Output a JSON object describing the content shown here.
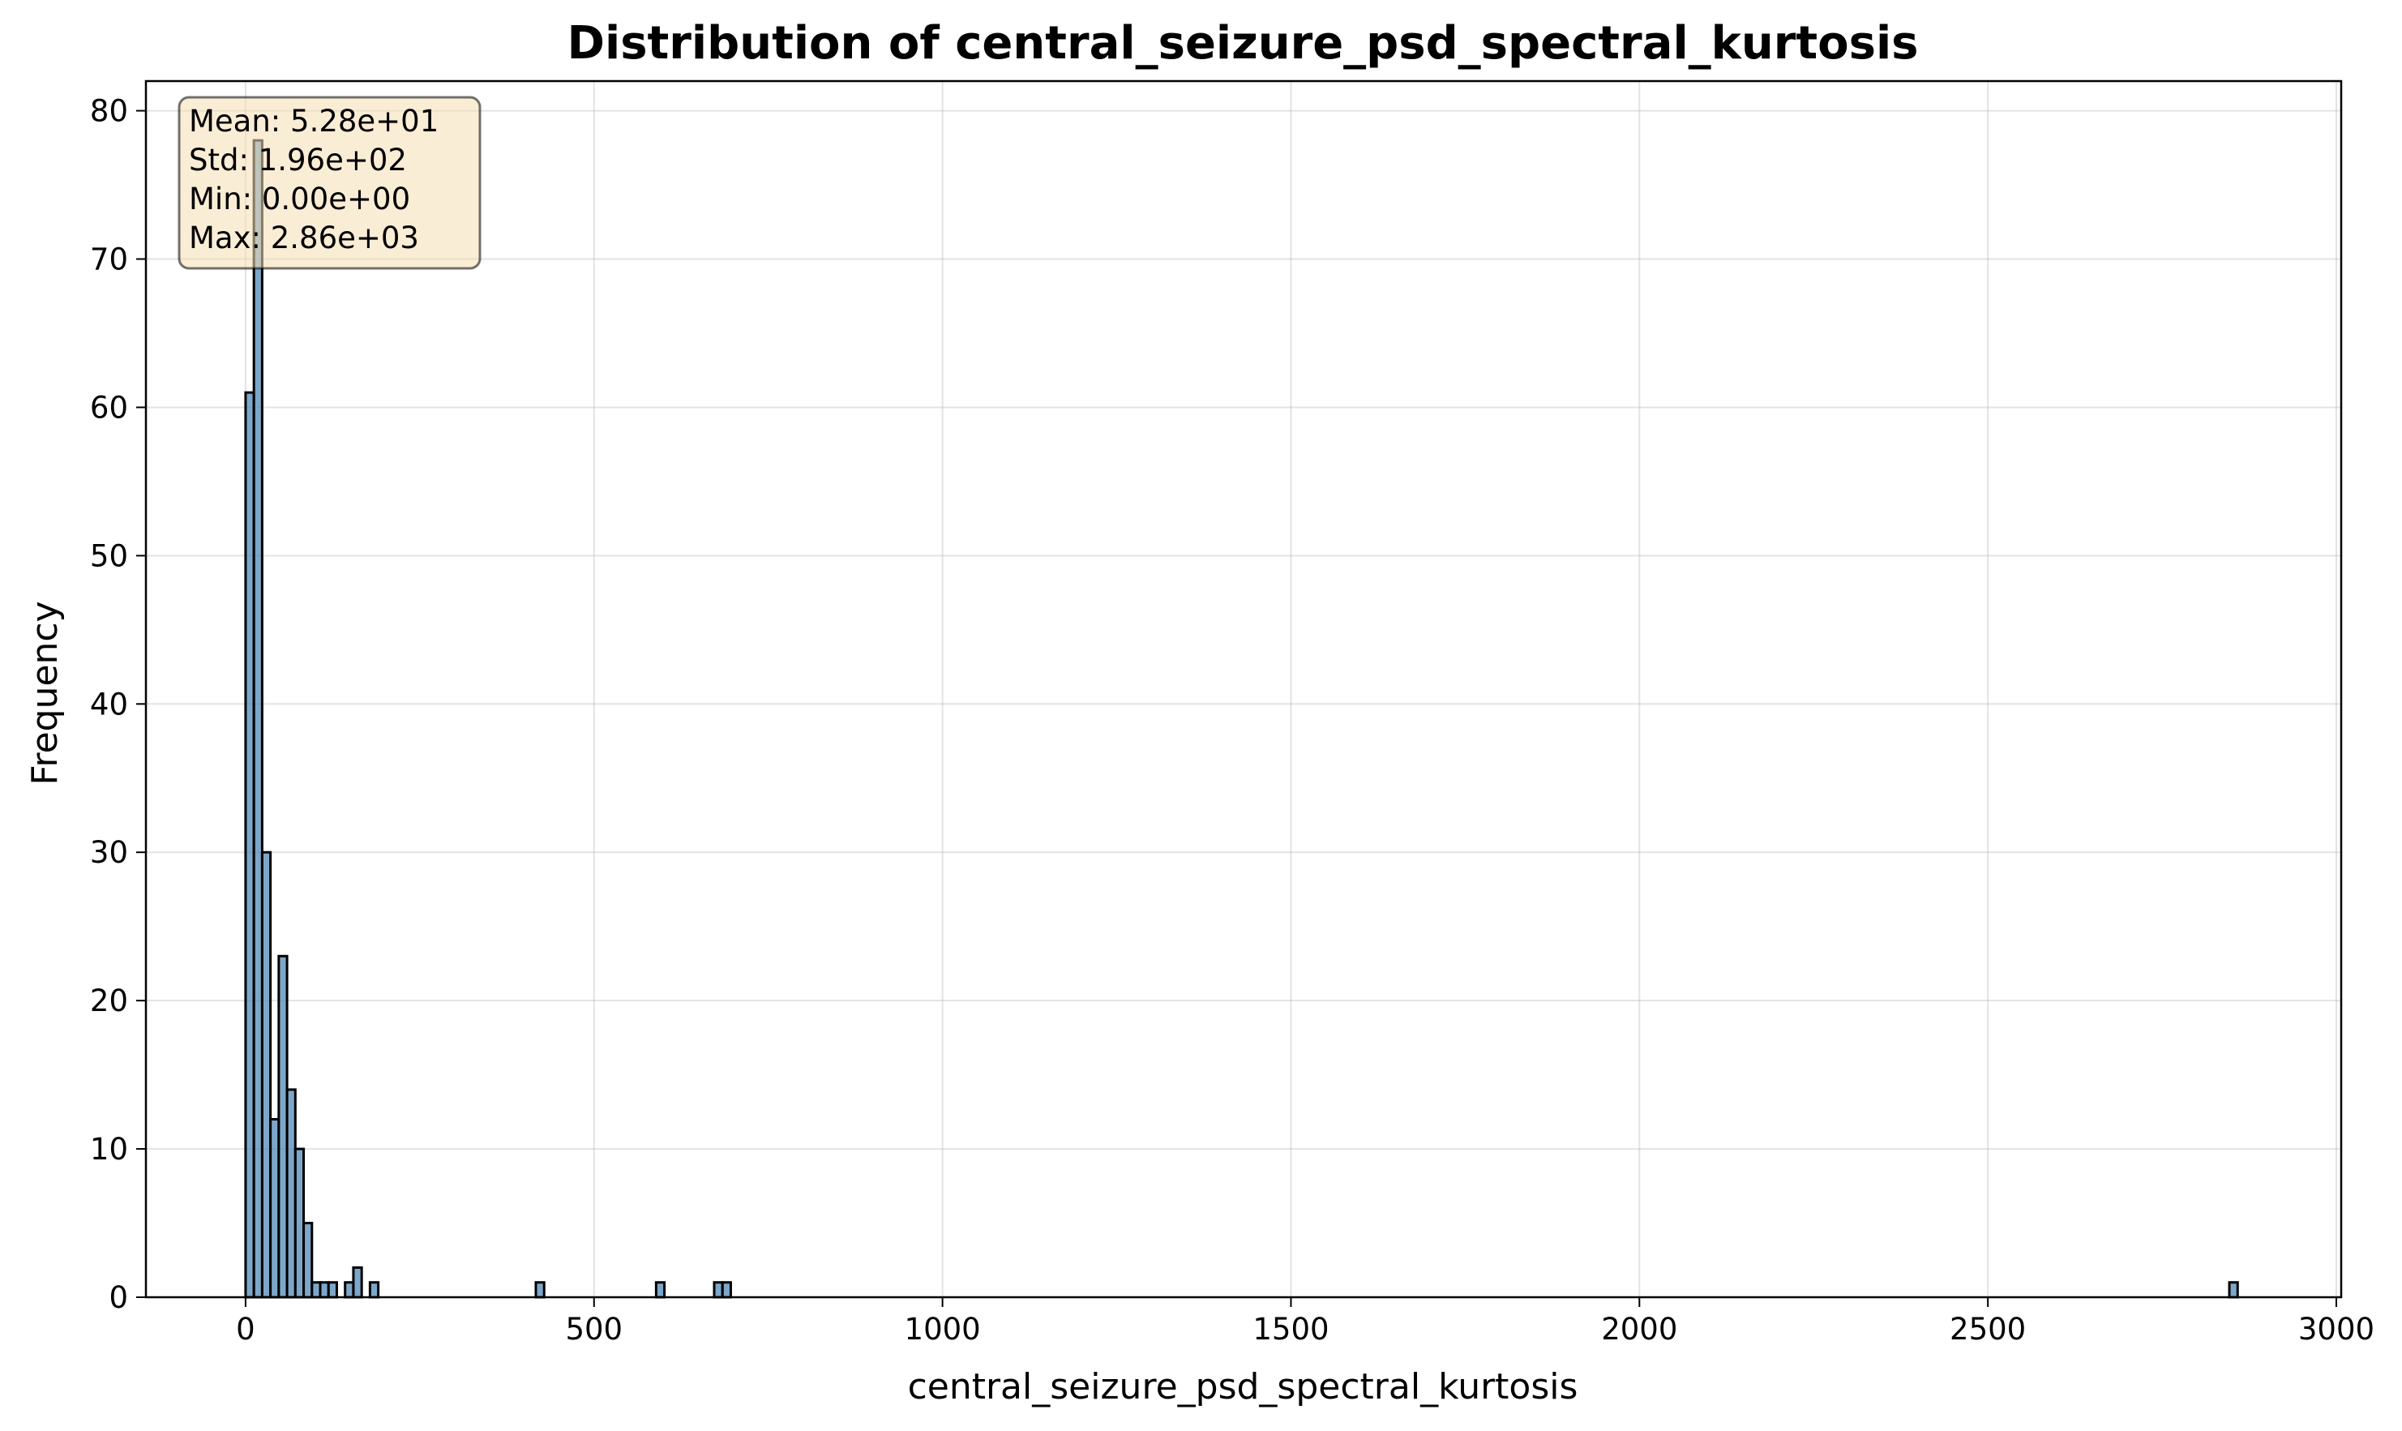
{
  "chart_data": {
    "type": "bar",
    "title": "Distribution of central_seizure_psd_spectral_kurtosis",
    "xlabel": "central_seizure_psd_spectral_kurtosis",
    "ylabel": "Frequency",
    "xlim": [
      -143,
      3007
    ],
    "ylim": [
      0,
      82
    ],
    "xticks": [
      0,
      500,
      1000,
      1500,
      2000,
      2500,
      3000
    ],
    "yticks": [
      0,
      10,
      20,
      30,
      40,
      50,
      60,
      70,
      80
    ],
    "grid": true,
    "bar_color": "#4682b4",
    "bin_width": 11.9,
    "bins": [
      {
        "x": 0.0,
        "count": 61
      },
      {
        "x": 11.9,
        "count": 78
      },
      {
        "x": 23.8,
        "count": 30
      },
      {
        "x": 35.7,
        "count": 12
      },
      {
        "x": 47.6,
        "count": 23
      },
      {
        "x": 59.5,
        "count": 14
      },
      {
        "x": 71.4,
        "count": 10
      },
      {
        "x": 83.3,
        "count": 5
      },
      {
        "x": 95.2,
        "count": 1
      },
      {
        "x": 107.1,
        "count": 1
      },
      {
        "x": 119.0,
        "count": 1
      },
      {
        "x": 142.8,
        "count": 1
      },
      {
        "x": 154.7,
        "count": 2
      },
      {
        "x": 178.5,
        "count": 1
      },
      {
        "x": 416.5,
        "count": 1
      },
      {
        "x": 589.1,
        "count": 1
      },
      {
        "x": 672.4,
        "count": 1
      },
      {
        "x": 684.3,
        "count": 1
      },
      {
        "x": 2846.5,
        "count": 1
      }
    ],
    "stats_box": {
      "lines": [
        "Mean: 5.28e+01",
        "Std: 1.96e+02",
        "Min: 0.00e+00",
        "Max: 2.86e+03"
      ],
      "fill": "#f5deb3",
      "placement": "top-left"
    }
  }
}
